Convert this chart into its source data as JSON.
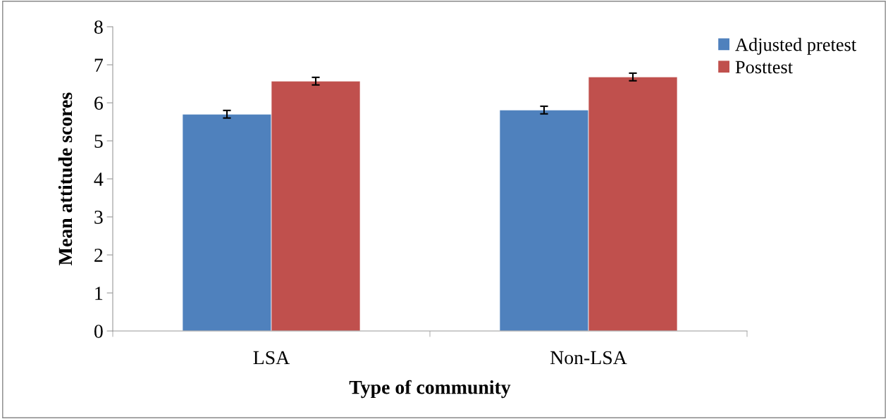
{
  "chart_data": {
    "type": "bar",
    "xlabel": "Type of community",
    "ylabel": "Mean attitude scores",
    "categories": [
      "LSA",
      "Non-LSA"
    ],
    "series": [
      {
        "name": "Adjusted pretest",
        "color": "#4f81bd",
        "values": [
          5.7,
          5.81
        ],
        "errors": [
          0.1,
          0.1
        ]
      },
      {
        "name": "Posttest",
        "color": "#c0504d",
        "values": [
          6.57,
          6.68
        ],
        "errors": [
          0.1,
          0.1
        ]
      }
    ],
    "ylim": [
      0,
      8
    ],
    "yticks": [
      0,
      1,
      2,
      3,
      4,
      5,
      6,
      7,
      8
    ],
    "grid": false,
    "legend": "top right"
  }
}
